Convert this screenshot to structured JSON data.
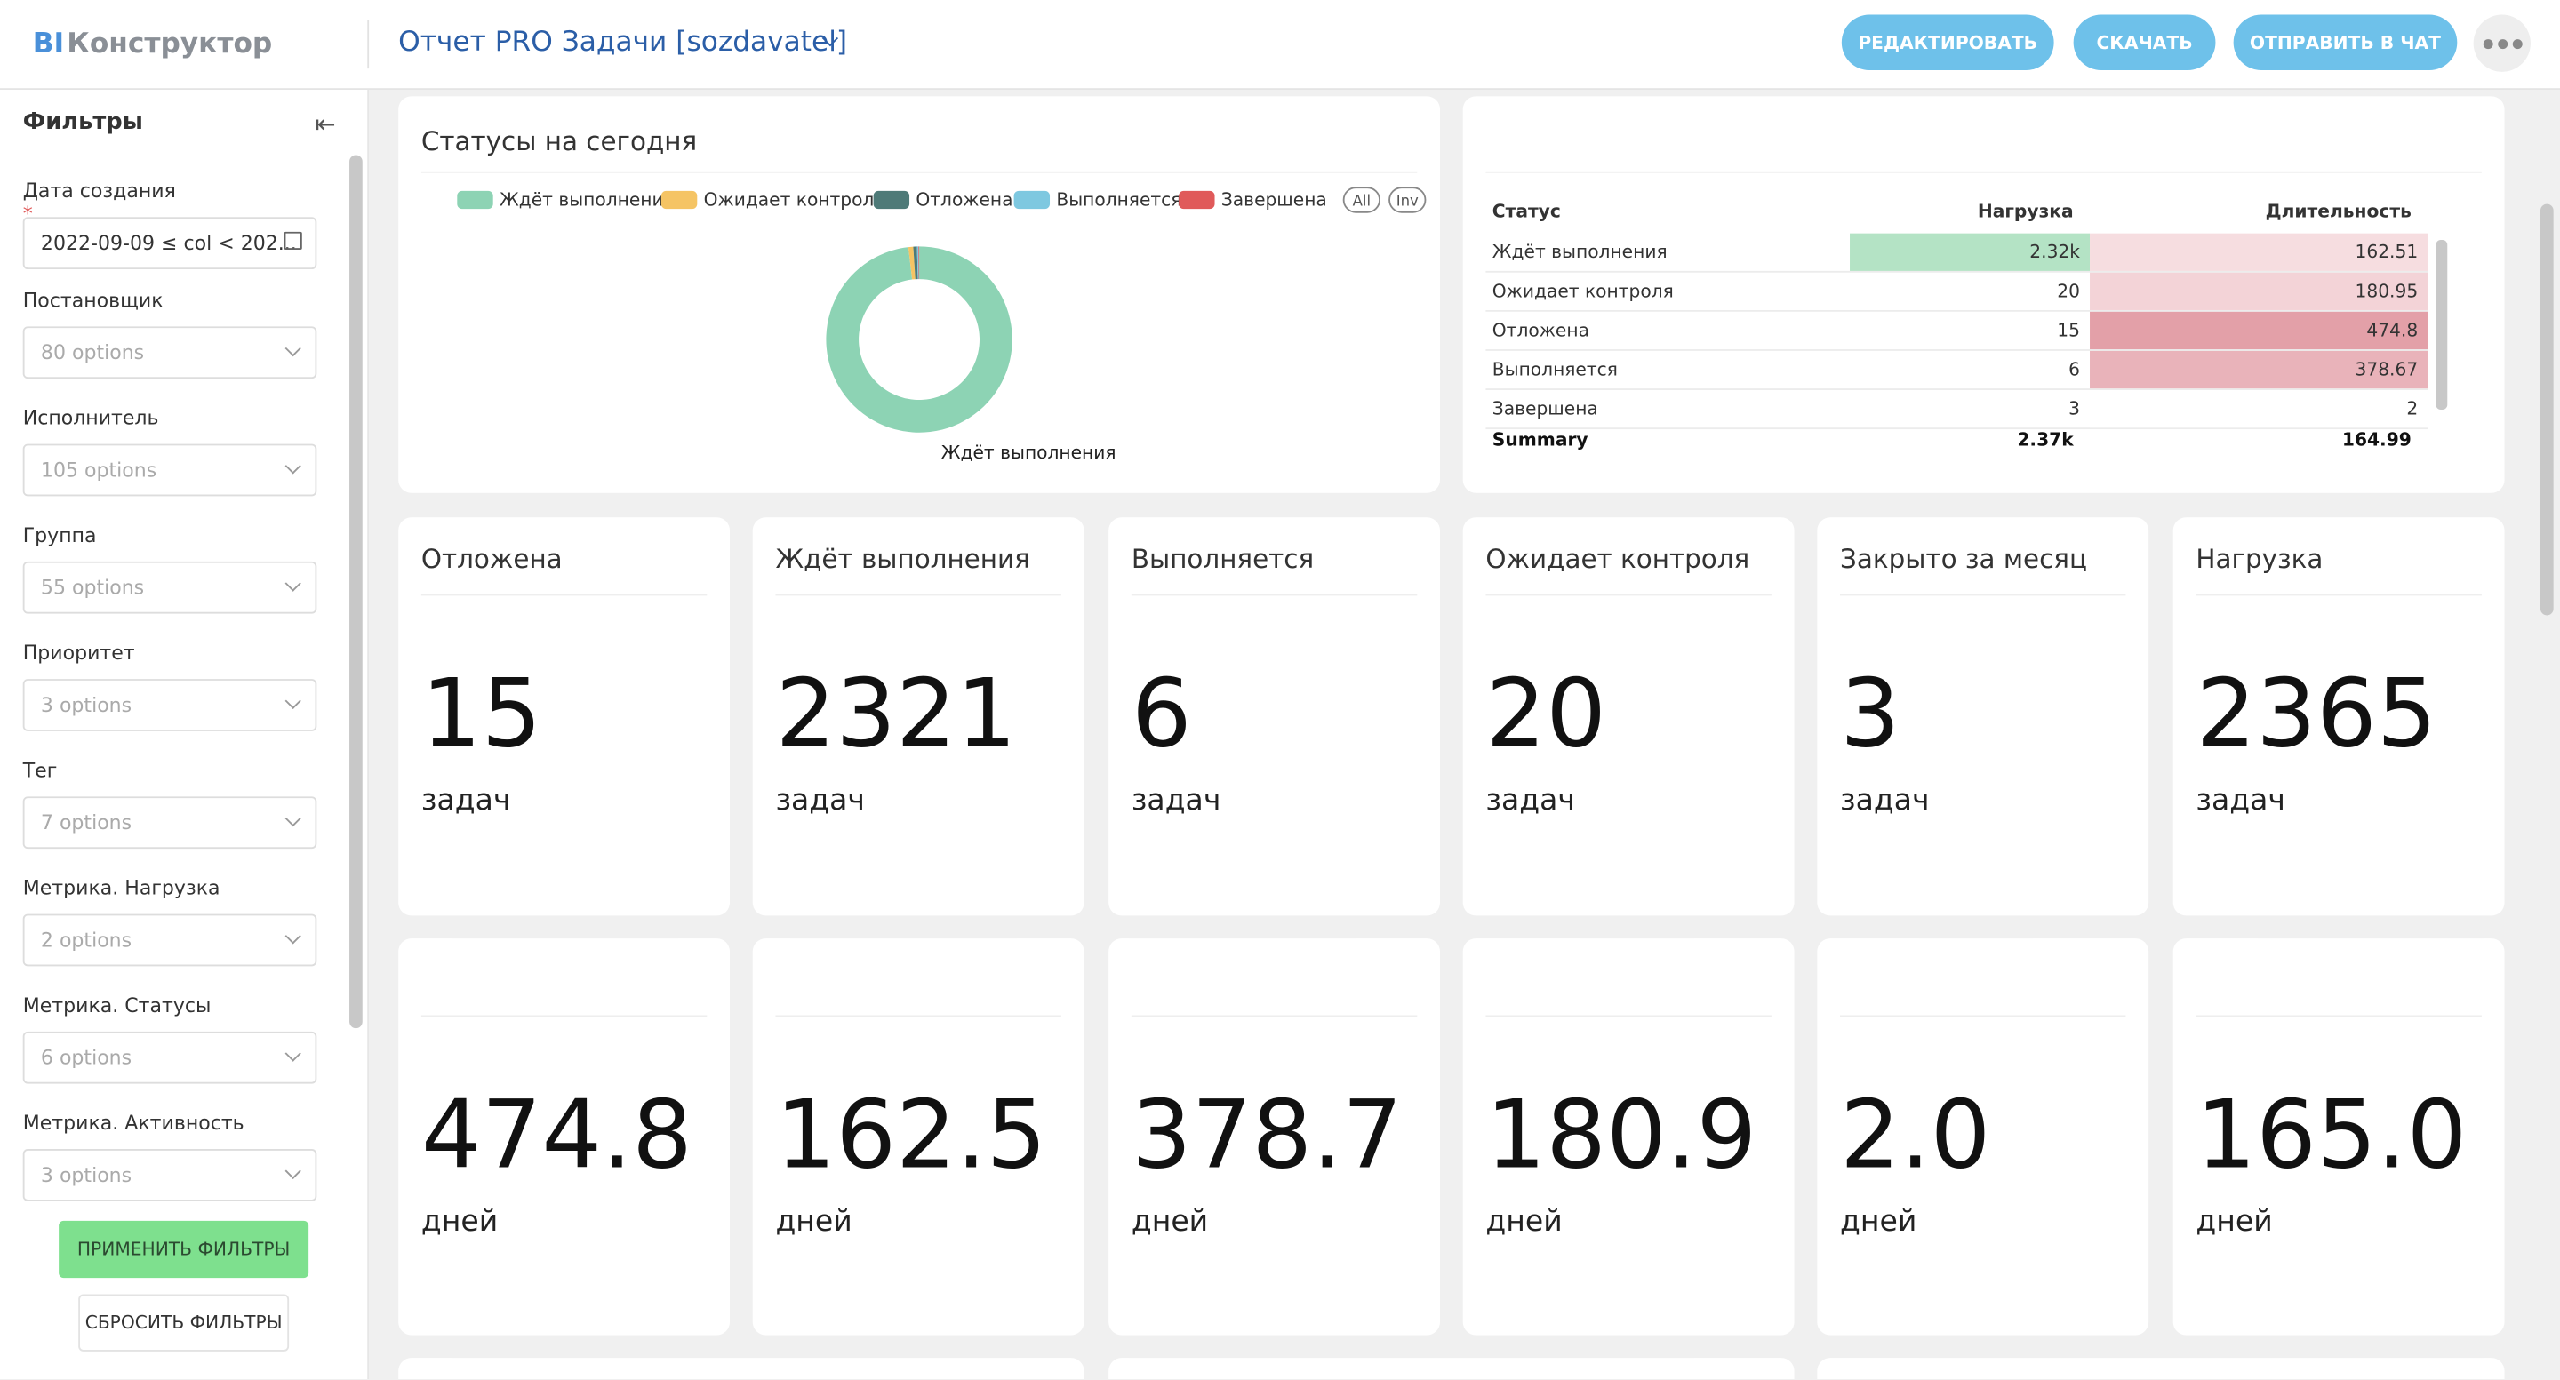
{
  "header": {
    "logo_bi": "BI",
    "logo_rest": "Конструктор",
    "title": "Отчет PRO Задачи [sozdavatel]",
    "buttons": [
      "РЕДАКТИРОВАТЬ",
      "СКАЧАТЬ",
      "ОТПРАВИТЬ В ЧАТ"
    ]
  },
  "sidebar": {
    "title": "Фильтры",
    "filters": [
      {
        "label": "Дата создания",
        "required_mark": "*",
        "value": "2022-09-09 ≤ col < 202..."
      },
      {
        "label": "Постановщик",
        "placeholder": "80 options"
      },
      {
        "label": "Исполнитель",
        "placeholder": "105 options"
      },
      {
        "label": "Группа",
        "placeholder": "55 options"
      },
      {
        "label": "Приоритет",
        "placeholder": "3 options"
      },
      {
        "label": "Тег",
        "placeholder": "7 options"
      },
      {
        "label": "Метрика. Нагрузка",
        "placeholder": "2 options"
      },
      {
        "label": "Метрика. Статусы",
        "placeholder": "6 options"
      },
      {
        "label": "Метрика. Активность",
        "placeholder": "3 options"
      }
    ],
    "apply": "ПРИМЕНИТЬ ФИЛЬТРЫ",
    "reset": "СБРОСИТЬ ФИЛЬТРЫ"
  },
  "status_chart": {
    "title": "Статусы на сегодня",
    "legend_buttons": [
      "All",
      "Inv"
    ],
    "series": [
      {
        "name": "Ждёт выполнения",
        "color": "#8dd3b4",
        "value": 2321
      },
      {
        "name": "Ожидает контроля",
        "color": "#f5c464",
        "value": 20
      },
      {
        "name": "Отложена",
        "color": "#4e7a78",
        "value": 15
      },
      {
        "name": "Выполняется",
        "color": "#7ec8e0",
        "value": 6
      },
      {
        "name": "Завершена",
        "color": "#e05a5a",
        "value": 3
      }
    ]
  },
  "status_table": {
    "columns": [
      "Статус",
      "Нагрузка",
      "Длительность"
    ],
    "rows": [
      [
        "Ждёт выполнения",
        "2.32k",
        "162.51"
      ],
      [
        "Ожидает контроля",
        "20",
        "180.95"
      ],
      [
        "Отложена",
        "15",
        "474.8"
      ],
      [
        "Выполняется",
        "6",
        "378.67"
      ],
      [
        "Завершена",
        "3",
        "2"
      ]
    ],
    "summary": [
      "Summary",
      "2.37k",
      "164.99"
    ]
  },
  "kpi_cards": [
    {
      "title": "Отложена",
      "value": "15",
      "unit": "задач"
    },
    {
      "title": "Ждёт выполнения",
      "value": "2321",
      "unit": "задач"
    },
    {
      "title": "Выполняется",
      "value": "6",
      "unit": "задач"
    },
    {
      "title": "Ожидает контроля",
      "value": "20",
      "unit": "задач"
    },
    {
      "title": "Закрыто за месяц",
      "value": "3",
      "unit": "задач"
    },
    {
      "title": "Нагрузка",
      "value": "2365",
      "unit": "задач"
    }
  ],
  "kpi_duration_cards": [
    {
      "value": "474.8",
      "unit": "дней"
    },
    {
      "value": "162.5",
      "unit": "дней"
    },
    {
      "value": "378.7",
      "unit": "дней"
    },
    {
      "value": "180.9",
      "unit": "дней"
    },
    {
      "value": "2.0",
      "unit": "дней"
    },
    {
      "value": "165.0",
      "unit": "дней"
    }
  ]
}
